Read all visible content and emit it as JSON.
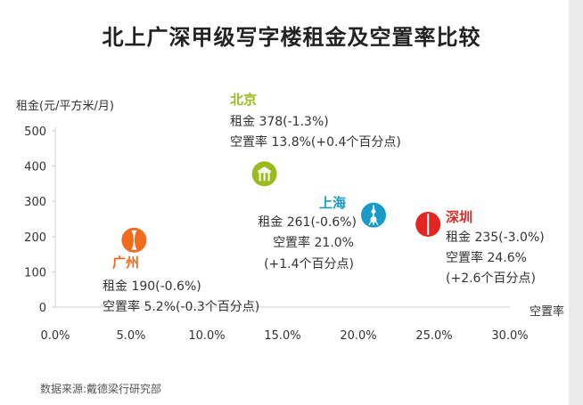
{
  "title": "北上广深甲级写字楼租金及空置率比较",
  "source": "数据来源:戴德梁行研究部",
  "colors": {
    "beijing": "#9bbb1c",
    "shanghai": "#1a9bc7",
    "guangzhou": "#f26b1d",
    "shenzhen": "#e52521"
  },
  "chart_data": {
    "type": "scatter",
    "title": "北上广深甲级写字楼租金及空置率比较",
    "xlabel": "空置率",
    "ylabel": "租金(元/平方米/月)",
    "xlim": [
      0,
      30
    ],
    "ylim": [
      0,
      500
    ],
    "x_ticks": [
      "0.0%",
      "5.0%",
      "10.0%",
      "15.0%",
      "20.0%",
      "25.0%",
      "30.0%"
    ],
    "y_ticks": [
      "0",
      "100",
      "200",
      "300",
      "400",
      "500"
    ],
    "grid": false,
    "points": [
      {
        "name": "北京",
        "x": 13.8,
        "y": 378,
        "color": "#9bbb1c",
        "icon": "beijing-landmark-icon",
        "lines": [
          "租金 378(-1.3%)",
          "空置率 13.8%(+0.4个百分点)"
        ]
      },
      {
        "name": "上海",
        "x": 21.0,
        "y": 261,
        "color": "#1a9bc7",
        "icon": "oriental-pearl-tower-icon",
        "lines": [
          "租金 261(-0.6%)",
          "空置率 21.0%",
          "(+1.4个百分点)"
        ]
      },
      {
        "name": "广州",
        "x": 5.2,
        "y": 190,
        "color": "#f26b1d",
        "icon": "canton-tower-icon",
        "lines": [
          "租金 190(-0.6%)",
          "空置率 5.2%(-0.3个百分点)"
        ]
      },
      {
        "name": "深圳",
        "x": 24.6,
        "y": 235,
        "color": "#e52521",
        "icon": "shenzhen-landmark-icon",
        "lines": [
          "租金 235(-3.0%)",
          "空置率 24.6%",
          "(+2.6个百分点)"
        ]
      }
    ]
  }
}
